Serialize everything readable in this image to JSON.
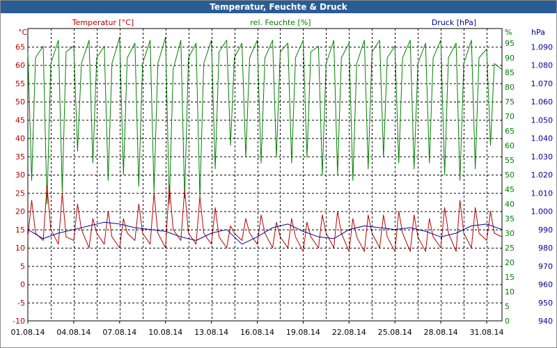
{
  "window": {
    "title": "Temperatur, Feuchte & Druck"
  },
  "colors": {
    "temp": "#b40000",
    "hum": "#008000",
    "press": "#000096",
    "titlebar": "#2a5c96"
  },
  "chart_data": {
    "type": "line",
    "title": "Temperatur, Feuchte & Druck",
    "x_tick_labels": [
      "01.08.14",
      "04.08.14",
      "07.08.14",
      "10.08.14",
      "13.08.14",
      "16.08.14",
      "19.08.14",
      "22.08.14",
      "25.08.14",
      "28.08.14",
      "31.08.14"
    ],
    "x_range_days": [
      0,
      31
    ],
    "axes": {
      "temp": {
        "label": "Temperatur [°C]",
        "unit": "°C",
        "min": -10,
        "max": 70,
        "ticks": [
          -10,
          -5,
          0,
          5,
          10,
          15,
          20,
          25,
          30,
          35,
          40,
          45,
          50,
          55,
          60,
          65
        ]
      },
      "hum": {
        "label": "rel. Feuchte [%]",
        "unit": "%",
        "min": 0,
        "max": 100,
        "ticks": [
          0,
          5,
          10,
          15,
          20,
          25,
          30,
          35,
          40,
          45,
          50,
          55,
          60,
          65,
          70,
          75,
          80,
          85,
          90,
          95
        ]
      },
      "press": {
        "label": "Druck [hPa]",
        "unit": "hPa",
        "min": 940,
        "max": 1100,
        "ticks": [
          "940",
          "950",
          "960",
          "970",
          "980",
          "990",
          "1.000",
          "1.010",
          "1.020",
          "1.030",
          "1.040",
          "1.050",
          "1.060",
          "1.070",
          "1.080",
          "1.090"
        ]
      }
    },
    "series": [
      {
        "name": "Temperatur [°C]",
        "axis": "temp",
        "x_days": [
          0,
          0.25,
          0.5,
          1,
          1.25,
          1.5,
          2,
          2.25,
          2.5,
          3,
          3.25,
          3.5,
          4,
          4.25,
          4.5,
          5,
          5.25,
          5.5,
          6,
          6.25,
          6.5,
          7,
          7.25,
          7.5,
          8,
          8.25,
          8.5,
          9,
          9.25,
          9.5,
          10,
          10.25,
          10.5,
          11,
          11.25,
          11.5,
          12,
          12.25,
          12.5,
          13,
          13.25,
          13.5,
          14,
          14.25,
          14.5,
          15,
          15.25,
          15.5,
          16,
          16.25,
          16.5,
          17,
          17.25,
          17.5,
          18,
          18.25,
          18.5,
          19,
          19.25,
          19.5,
          20,
          20.25,
          20.5,
          21,
          21.25,
          21.5,
          22,
          22.25,
          22.5,
          23,
          23.25,
          23.5,
          24,
          24.25,
          24.5,
          25,
          25.25,
          25.5,
          26,
          26.25,
          26.5,
          27,
          27.25,
          27.5,
          28,
          28.25,
          28.5,
          29,
          29.25,
          29.5,
          30,
          30.25,
          30.5,
          31
        ],
        "values": [
          13,
          23,
          14,
          12,
          27,
          15,
          11,
          25,
          13,
          12,
          22,
          15,
          10,
          18,
          14,
          11,
          20,
          13,
          10,
          18,
          14,
          12,
          22,
          14,
          11,
          25,
          14,
          10,
          27,
          15,
          12,
          26,
          14,
          11,
          24,
          14,
          11,
          21,
          13,
          10,
          16,
          14,
          12,
          18,
          14,
          11,
          19,
          14,
          10,
          17,
          13,
          10,
          18,
          13,
          9,
          17,
          13,
          10,
          19,
          14,
          10,
          20,
          14,
          9,
          18,
          13,
          9,
          19,
          14,
          10,
          19,
          13,
          9,
          20,
          14,
          9,
          19,
          13,
          9,
          18,
          13,
          10,
          21,
          14,
          9,
          23,
          14,
          10,
          21,
          14,
          12,
          20,
          14,
          13
        ]
      },
      {
        "name": "rel. Feuchte [%]",
        "axis": "hum",
        "x_days": [
          0,
          0.25,
          0.5,
          1,
          1.25,
          1.5,
          2,
          2.25,
          2.5,
          3,
          3.25,
          3.5,
          4,
          4.25,
          4.5,
          5,
          5.25,
          5.5,
          6,
          6.25,
          6.5,
          7,
          7.25,
          7.5,
          8,
          8.25,
          8.5,
          9,
          9.25,
          9.5,
          10,
          10.25,
          10.5,
          11,
          11.25,
          11.5,
          12,
          12.25,
          12.5,
          13,
          13.25,
          13.5,
          14,
          14.25,
          14.5,
          15,
          15.25,
          15.5,
          16,
          16.25,
          16.5,
          17,
          17.25,
          17.5,
          18,
          18.25,
          18.5,
          19,
          19.25,
          19.5,
          20,
          20.25,
          20.5,
          21,
          21.25,
          21.5,
          22,
          22.25,
          22.5,
          23,
          23.25,
          23.5,
          24,
          24.25,
          24.5,
          25,
          25.25,
          25.5,
          26,
          26.25,
          26.5,
          27,
          27.25,
          27.5,
          28,
          28.25,
          28.5,
          29,
          29.25,
          29.5,
          30,
          30.25,
          30.5,
          31
        ],
        "values": [
          92,
          48,
          90,
          94,
          40,
          88,
          96,
          44,
          92,
          94,
          58,
          88,
          96,
          54,
          90,
          94,
          48,
          88,
          97,
          50,
          90,
          95,
          46,
          88,
          96,
          44,
          88,
          97,
          40,
          86,
          96,
          42,
          90,
          95,
          42,
          88,
          96,
          52,
          92,
          96,
          60,
          90,
          95,
          56,
          90,
          96,
          54,
          90,
          96,
          56,
          92,
          95,
          54,
          90,
          96,
          56,
          92,
          94,
          50,
          88,
          96,
          50,
          90,
          95,
          48,
          88,
          96,
          52,
          92,
          96,
          56,
          90,
          94,
          54,
          90,
          96,
          52,
          88,
          95,
          54,
          90,
          96,
          50,
          90,
          95,
          48,
          88,
          96,
          52,
          90,
          93,
          60,
          88,
          86
        ]
      },
      {
        "name": "Druck [hPa]",
        "axis": "press",
        "x_days": [
          0,
          1,
          2,
          3,
          4,
          5,
          6,
          7,
          8,
          9,
          10,
          11,
          12,
          13,
          14,
          15,
          16,
          17,
          18,
          19,
          20,
          21,
          22,
          23,
          24,
          25,
          26,
          27,
          28,
          29,
          30,
          31
        ],
        "values": [
          990,
          985,
          988,
          990,
          992,
          994,
          993,
          991,
          990,
          989,
          986,
          984,
          988,
          990,
          982,
          986,
          991,
          993,
          989,
          986,
          985,
          990,
          992,
          991,
          990,
          991,
          989,
          986,
          988,
          992,
          993,
          990
        ]
      }
    ]
  }
}
